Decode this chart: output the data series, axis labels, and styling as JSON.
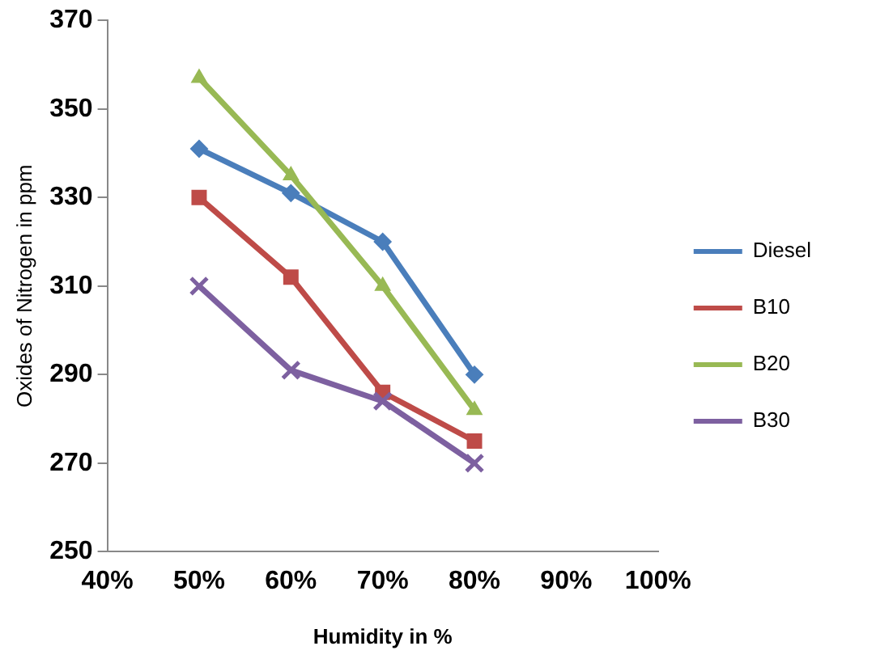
{
  "chart_data": {
    "type": "line",
    "xlabel": "Humidity in %",
    "ylabel": "Oxides of Nitrogen in ppm",
    "x": [
      50,
      60,
      70,
      80
    ],
    "xlim": [
      40,
      100
    ],
    "xticks": [
      {
        "value": 40,
        "label": "40%"
      },
      {
        "value": 50,
        "label": "50%"
      },
      {
        "value": 60,
        "label": "60%"
      },
      {
        "value": 70,
        "label": "70%"
      },
      {
        "value": 80,
        "label": "80%"
      },
      {
        "value": 90,
        "label": "90%"
      },
      {
        "value": 100,
        "label": "100%"
      }
    ],
    "ylim": [
      250,
      370
    ],
    "yticks": [
      250,
      270,
      290,
      310,
      330,
      350,
      370
    ],
    "grid": false,
    "legend": "right",
    "series": [
      {
        "name": "Diesel",
        "color": "#4a7ebb",
        "marker": "diamond",
        "values": [
          341,
          331,
          320,
          290
        ]
      },
      {
        "name": "B10",
        "color": "#be4b48",
        "marker": "square",
        "values": [
          330,
          312,
          286,
          275
        ]
      },
      {
        "name": "B20",
        "color": "#98b954",
        "marker": "triangle",
        "values": [
          357,
          335,
          310,
          282
        ]
      },
      {
        "name": "B30",
        "color": "#7d60a0",
        "marker": "cross",
        "values": [
          310,
          291,
          284,
          270
        ]
      }
    ]
  }
}
